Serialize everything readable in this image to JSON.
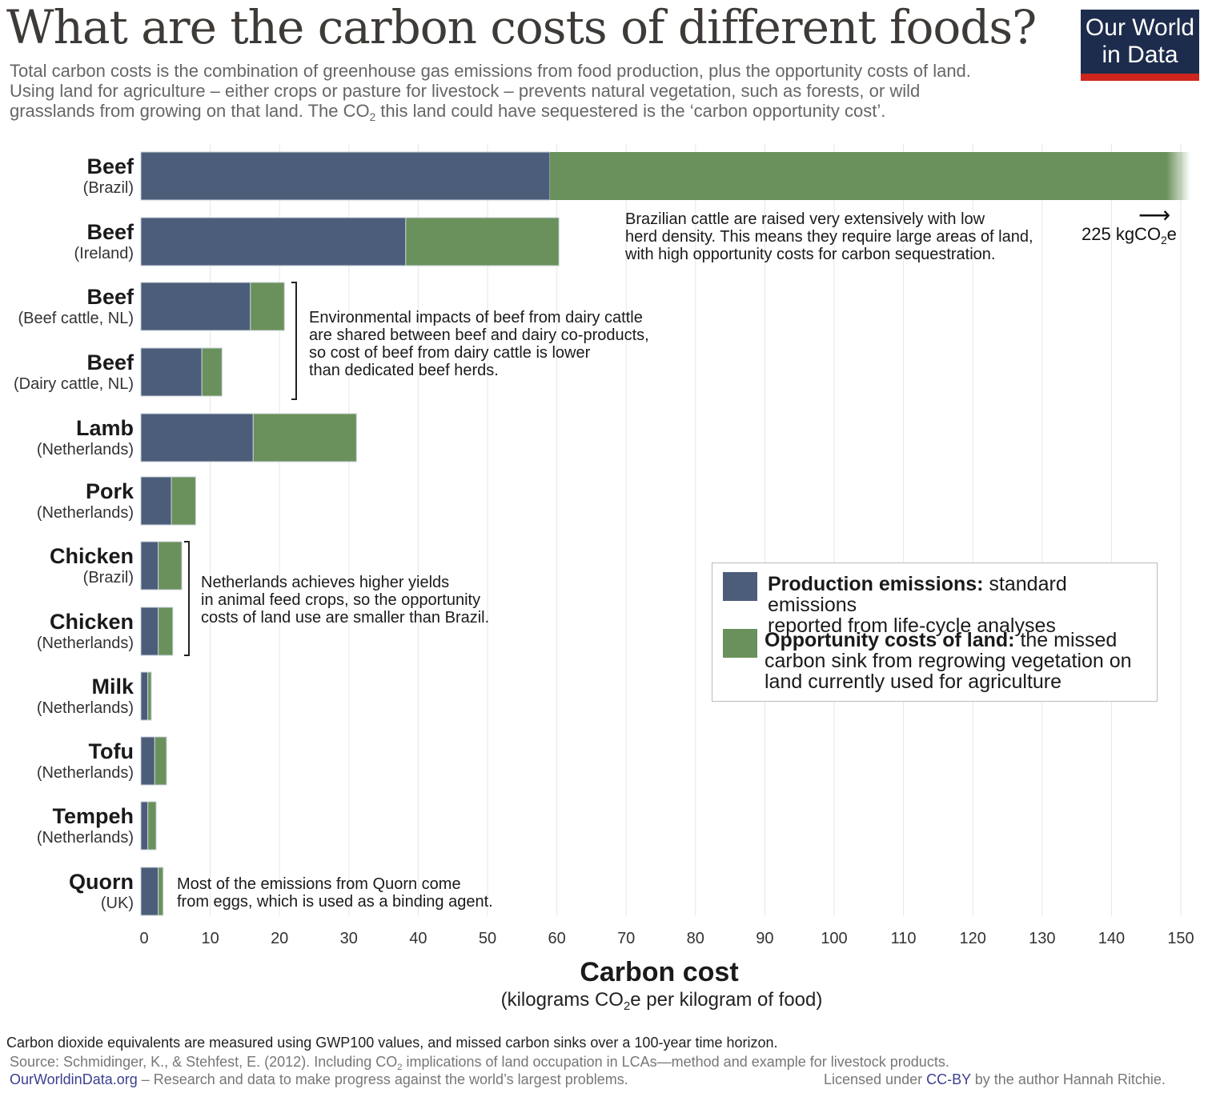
{
  "header": {
    "title": "What are the carbon costs of different foods?",
    "subtitle_line1": "Total carbon costs is the combination of greenhouse gas emissions from food production, plus the opportunity costs of land.",
    "subtitle_line2": "Using land for agriculture – either crops or pasture for livestock – prevents natural vegetation, such as forests, or wild",
    "subtitle_line3_a": "grasslands from growing on that land. The CO",
    "subtitle_line3_sub": "2",
    "subtitle_line3_b": " this land could have sequestered is the ‘carbon opportunity cost’.",
    "logo_line1": "Our World",
    "logo_line2": "in Data"
  },
  "colors": {
    "production": "#4c5d7a",
    "opportunity": "#6a915b",
    "logo_bg": "#1d2c4c",
    "logo_bar": "#ce261e",
    "link": "#3b3f8f"
  },
  "chart_data": {
    "type": "bar",
    "orientation": "horizontal",
    "stacked": true,
    "title": "What are the carbon costs of different foods?",
    "xlabel": "Carbon cost",
    "xlabel_sub": "(kilograms CO2e per kilogram of food)",
    "xlim": [
      0,
      150
    ],
    "xticks": [
      0,
      10,
      20,
      30,
      40,
      50,
      60,
      70,
      80,
      90,
      100,
      110,
      120,
      130,
      140,
      150
    ],
    "grid": true,
    "legend_position": "right-middle",
    "categories": [
      {
        "name": "Beef",
        "sub": "(Brazil)"
      },
      {
        "name": "Beef",
        "sub": "(Ireland)"
      },
      {
        "name": "Beef",
        "sub": "(Beef cattle, NL)"
      },
      {
        "name": "Beef",
        "sub": "(Dairy cattle, NL)"
      },
      {
        "name": "Lamb",
        "sub": "(Netherlands)"
      },
      {
        "name": "Pork",
        "sub": "(Netherlands)"
      },
      {
        "name": "Chicken",
        "sub": "(Brazil)"
      },
      {
        "name": "Chicken",
        "sub": "(Netherlands)"
      },
      {
        "name": "Milk",
        "sub": "(Netherlands)"
      },
      {
        "name": "Tofu",
        "sub": "(Netherlands)"
      },
      {
        "name": "Tempeh",
        "sub": "(Netherlands)"
      },
      {
        "name": "Quorn",
        "sub": "(UK)"
      }
    ],
    "series": [
      {
        "name": "Production emissions",
        "values": [
          59,
          38.2,
          15.8,
          8.8,
          16.2,
          4.4,
          2.5,
          2.5,
          1.0,
          2.0,
          1.0,
          2.5
        ]
      },
      {
        "name": "Opportunity costs of land",
        "values": [
          166,
          22.1,
          4.9,
          2.9,
          14.9,
          3.5,
          3.4,
          2.1,
          0.5,
          1.7,
          1.2,
          0.7
        ]
      }
    ],
    "totals_note": {
      "category_index": 0,
      "total": 225,
      "label": "225 kgCO2e"
    }
  },
  "annotations": {
    "brazil_beef": "Brazilian cattle are raised very extensively with low\nherd density. This means they require large areas of land,\nwith high opportunity costs for carbon sequestration.",
    "dairy_beef": "Environmental impacts of beef from dairy cattle\nare shared between beef and dairy co-products,\nso cost of beef from dairy cattle is lower\nthan dedicated beef herds.",
    "chicken": "Netherlands achieves higher yields\nin animal feed crops, so the opportunity\ncosts of land use are smaller than Brazil.",
    "quorn": "Most of the emissions from Quorn come\nfrom eggs, which is used as a binding agent.",
    "arrow_value": "225 kgCO",
    "arrow_sub": "2",
    "arrow_tail": "e",
    "arrow_glyph": "⟶"
  },
  "legend": {
    "production_bold": "Production emissions:",
    "production_text": " standard emissions",
    "production_text2": "reported from life-cycle analyses",
    "opportunity_bold": "Opportunity costs of land:",
    "opportunity_text": " the missed",
    "opportunity_text2": "carbon sink from regrowing vegetation on",
    "opportunity_text3": "land currently used for agriculture"
  },
  "axis": {
    "title": "Carbon cost",
    "sub_a": "(kilograms CO",
    "sub_sub": "2",
    "sub_b": "e per kilogram of food)"
  },
  "footer": {
    "note": "Carbon dioxide equivalents are measured using GWP100 values, and missed carbon sinks over a 100-year time horizon.",
    "source_a": "Source: Schmidinger, K., & Stehfest, E. (2012). Including CO",
    "source_sub": "2",
    "source_b": " implications of land occupation in LCAs—method and example for livestock products.",
    "site_link": "OurWorldinData.org",
    "site_text": " – Research and data to make progress against the world’s largest problems.",
    "license_a": "Licensed under ",
    "license_link": "CC-BY",
    "license_b": " by the author Hannah Ritchie."
  }
}
